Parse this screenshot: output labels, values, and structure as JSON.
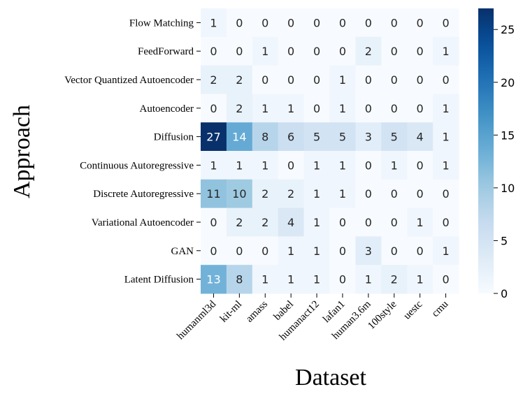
{
  "chart_data": {
    "type": "heatmap",
    "xlabel": "Dataset",
    "ylabel": "Approach",
    "x_categories": [
      "humanml3d",
      "kit-ml",
      "amass",
      "babel",
      "humanact12",
      "lafan1",
      "human3.6m",
      "100style",
      "uestc",
      "cmu"
    ],
    "y_categories": [
      "Flow Matching",
      "FeedForward",
      "Vector Quantized Autoencoder",
      "Autoencoder",
      "Diffusion",
      "Continuous Autoregressive",
      "Discrete Autoregressive",
      "Variational Autoencoder",
      "GAN",
      "Latent Diffusion"
    ],
    "values": [
      [
        1,
        0,
        0,
        0,
        0,
        0,
        0,
        0,
        0,
        0
      ],
      [
        0,
        0,
        1,
        0,
        0,
        0,
        2,
        0,
        0,
        1
      ],
      [
        2,
        2,
        0,
        0,
        0,
        1,
        0,
        0,
        0,
        0
      ],
      [
        0,
        2,
        1,
        1,
        0,
        1,
        0,
        0,
        0,
        1
      ],
      [
        27,
        14,
        8,
        6,
        5,
        5,
        3,
        5,
        4,
        1
      ],
      [
        1,
        1,
        1,
        0,
        1,
        1,
        0,
        1,
        0,
        1
      ],
      [
        11,
        10,
        2,
        2,
        1,
        1,
        0,
        0,
        0,
        0
      ],
      [
        0,
        2,
        2,
        4,
        1,
        0,
        0,
        0,
        1,
        0
      ],
      [
        0,
        0,
        0,
        1,
        1,
        0,
        3,
        0,
        0,
        1
      ],
      [
        13,
        8,
        1,
        1,
        1,
        0,
        1,
        2,
        1,
        0
      ]
    ],
    "colorbar": {
      "colormap": "Blues",
      "range": [
        0,
        27
      ],
      "ticks": [
        0,
        5,
        10,
        15,
        20,
        25
      ]
    }
  }
}
